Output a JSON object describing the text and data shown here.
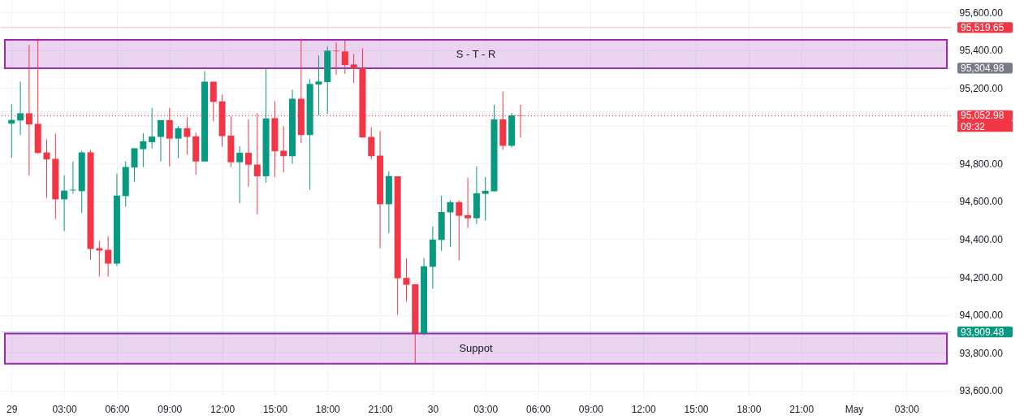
{
  "chart_data": {
    "type": "candlestick",
    "x": [
      "--04-29T00:00",
      "--04-29T00:30",
      "--04-29T01:00",
      "--04-29T01:30",
      "--04-29T02:00",
      "--04-29T02:30",
      "--04-29T03:00",
      "--04-29T03:30",
      "--04-29T04:00",
      "--04-29T04:30",
      "--04-29T05:00",
      "--04-29T05:30",
      "--04-29T06:00",
      "--04-29T06:30",
      "--04-29T07:00",
      "--04-29T07:30",
      "--04-29T08:00",
      "--04-29T08:30",
      "--04-29T09:00",
      "--04-29T09:30",
      "--04-29T10:00",
      "--04-29T10:30",
      "--04-29T11:00",
      "--04-29T11:30",
      "--04-29T12:00",
      "--04-29T12:30",
      "--04-29T13:00",
      "--04-29T13:30",
      "--04-29T14:00",
      "--04-29T14:30",
      "--04-29T15:00",
      "--04-29T15:30",
      "--04-29T16:00",
      "--04-29T16:30",
      "--04-29T17:00",
      "--04-29T17:30",
      "--04-29T18:00",
      "--04-29T18:30",
      "--04-29T19:00",
      "--04-29T19:30",
      "--04-29T20:00",
      "--04-29T20:30",
      "--04-29T21:00",
      "--04-29T21:30",
      "--04-29T22:00",
      "--04-29T22:30",
      "--04-29T23:00",
      "--04-29T23:30",
      "--04-30T00:00",
      "--04-30T00:30",
      "--04-30T01:00",
      "--04-30T01:30",
      "--04-30T02:00",
      "--04-30T02:30",
      "--04-30T03:00",
      "--04-30T03:30",
      "--04-30T04:00",
      "--04-30T04:30",
      "--04-30T05:00"
    ],
    "ohlc": [
      [
        95011,
        95113,
        94830,
        95031
      ],
      [
        95028,
        95234,
        94951,
        95066
      ],
      [
        95066,
        95427,
        94736,
        95007
      ],
      [
        95010,
        95462,
        94852,
        94856
      ],
      [
        94859,
        94928,
        94619,
        94822
      ],
      [
        94825,
        94958,
        94507,
        94611
      ],
      [
        94611,
        94738,
        94443,
        94657
      ],
      [
        94658,
        94812,
        94641,
        94662
      ],
      [
        94654,
        94868,
        94538,
        94859
      ],
      [
        94859,
        94872,
        94292,
        94348
      ],
      [
        94352,
        94391,
        94202,
        94340
      ],
      [
        94344,
        94416,
        94202,
        94271
      ],
      [
        94271,
        94747,
        94258,
        94631
      ],
      [
        94628,
        94812,
        94572,
        94782
      ],
      [
        94779,
        94881,
        94705,
        94881
      ],
      [
        94876,
        94961,
        94781,
        94918
      ],
      [
        94913,
        95095,
        94880,
        94943
      ],
      [
        94941,
        95030,
        94811,
        95030
      ],
      [
        95030,
        95095,
        94785,
        94932
      ],
      [
        94932,
        94998,
        94828,
        94987
      ],
      [
        94987,
        95043,
        94846,
        94941
      ],
      [
        94944,
        94964,
        94742,
        94811
      ],
      [
        94811,
        95289,
        94811,
        95233
      ],
      [
        95233,
        95233,
        95023,
        95126
      ],
      [
        95129,
        95164,
        94889,
        94945
      ],
      [
        94948,
        95050,
        94781,
        94807
      ],
      [
        94807,
        94892,
        94591,
        94857
      ],
      [
        94857,
        95034,
        94677,
        94794
      ],
      [
        94795,
        95067,
        94530,
        94733
      ],
      [
        94733,
        95302,
        94699,
        95039
      ],
      [
        95040,
        95130,
        94730,
        94865
      ],
      [
        94868,
        94998,
        94753,
        94839
      ],
      [
        94839,
        95190,
        94800,
        95143
      ],
      [
        95143,
        95462,
        94908,
        94951
      ],
      [
        94951,
        95246,
        94662,
        95221
      ],
      [
        95218,
        95371,
        95054,
        95234
      ],
      [
        95231,
        95419,
        95063,
        95397
      ],
      [
        95397,
        95440,
        95269,
        95394
      ],
      [
        95393,
        95453,
        95274,
        95321
      ],
      [
        95324,
        95380,
        95226,
        95300
      ],
      [
        95304,
        95410,
        94938,
        94938
      ],
      [
        94941,
        94992,
        94822,
        94839
      ],
      [
        94842,
        94971,
        94352,
        94585
      ],
      [
        94585,
        94760,
        94434,
        94734
      ],
      [
        94733,
        94733,
        94000,
        94194
      ],
      [
        94195,
        94300,
        94069,
        94159
      ],
      [
        94162,
        94162,
        93743,
        93903
      ],
      [
        93903,
        94300,
        93893,
        94257
      ],
      [
        94254,
        94467,
        94138,
        94398
      ],
      [
        94396,
        94630,
        94338,
        94544
      ],
      [
        94542,
        94605,
        94361,
        94596
      ],
      [
        94596,
        94605,
        94288,
        94524
      ],
      [
        94527,
        94725,
        94460,
        94511
      ],
      [
        94511,
        94785,
        94481,
        94643
      ],
      [
        94640,
        94729,
        94499,
        94656
      ],
      [
        94653,
        95111,
        94653,
        95034
      ],
      [
        95034,
        95180,
        94872,
        94894
      ],
      [
        94894,
        95068,
        94885,
        95055
      ],
      [
        95055,
        95111,
        94937,
        95053
      ]
    ],
    "colors": [
      "#089981",
      "#089981",
      "#f23645",
      "#f23645",
      "#f23645",
      "#f23645",
      "#089981",
      "#089981",
      "#089981",
      "#f23645",
      "#f23645",
      "#f23645",
      "#089981",
      "#089981",
      "#089981",
      "#089981",
      "#089981",
      "#089981",
      "#f23645",
      "#089981",
      "#f23645",
      "#f23645",
      "#089981",
      "#f23645",
      "#f23645",
      "#f23645",
      "#089981",
      "#f23645",
      "#f23645",
      "#089981",
      "#f23645",
      "#f23645",
      "#089981",
      "#f23645",
      "#089981",
      "#089981",
      "#089981",
      "#f23645",
      "#f23645",
      "#f23645",
      "#f23645",
      "#f23645",
      "#f23645",
      "#089981",
      "#f23645",
      "#f23645",
      "#f23645",
      "#089981",
      "#089981",
      "#089981",
      "#089981",
      "#f23645",
      "#f23645",
      "#089981",
      "#089981",
      "#089981",
      "#f23645",
      "#089981",
      "#f23645"
    ],
    "xlim": [
      "--04-28T23:37",
      "--05-01T05:18"
    ],
    "xticks": [
      {
        "value": "--04-29T00:00",
        "label": "29"
      },
      {
        "value": "--04-29T03:00",
        "label": "03:00"
      },
      {
        "value": "--04-29T06:00",
        "label": "06:00"
      },
      {
        "value": "--04-29T09:00",
        "label": "09:00"
      },
      {
        "value": "--04-29T12:00",
        "label": "12:00"
      },
      {
        "value": "--04-29T15:00",
        "label": "15:00"
      },
      {
        "value": "--04-29T18:00",
        "label": "18:00"
      },
      {
        "value": "--04-29T21:00",
        "label": "21:00"
      },
      {
        "value": "--04-30T00:00",
        "label": "30"
      },
      {
        "value": "--04-30T03:00",
        "label": "03:00"
      },
      {
        "value": "--04-30T06:00",
        "label": "06:00"
      },
      {
        "value": "--04-30T09:00",
        "label": "09:00"
      },
      {
        "value": "--04-30T12:00",
        "label": "12:00"
      },
      {
        "value": "--04-30T15:00",
        "label": "15:00"
      },
      {
        "value": "--04-30T18:00",
        "label": "18:00"
      },
      {
        "value": "--04-30T21:00",
        "label": "21:00"
      },
      {
        "value": "--05-01T00:00",
        "label": "May"
      },
      {
        "value": "--05-01T03:00",
        "label": "03:00"
      }
    ],
    "ylim": [
      93560,
      95665
    ],
    "yticks": [
      {
        "value": 93600,
        "label": "93,600.00"
      },
      {
        "value": 93800,
        "label": "93,800.00"
      },
      {
        "value": 94000,
        "label": "94,000.00"
      },
      {
        "value": 94200,
        "label": "94,200.00"
      },
      {
        "value": 94400,
        "label": "94,400.00"
      },
      {
        "value": 94600,
        "label": "94,600.00"
      },
      {
        "value": 94800,
        "label": "94,800.00"
      },
      {
        "value": 95000,
        "label": null
      },
      {
        "value": 95200,
        "label": "95,200.00"
      },
      {
        "value": 95400,
        "label": "95,400.00"
      },
      {
        "value": 95600,
        "label": "95,600.00"
      }
    ],
    "grid": true,
    "ref_lines": [
      {
        "axis": "y",
        "value": 95052.98,
        "label": "95,052.98",
        "color": "#f23645",
        "line_style": "dotted"
      },
      {
        "axis": "y",
        "value": 95519.65,
        "label": "95,519.65",
        "color": "#f23645",
        "line_style": "solid"
      },
      {
        "axis": "y",
        "value": 95304.98,
        "label": "95,304.98",
        "color": "#787b86",
        "line_style": "solid"
      },
      {
        "axis": "y",
        "value": 93909.48,
        "label": "93,909.48",
        "color": "#089981",
        "line_style": "solid"
      }
    ],
    "bands": [
      {
        "axis": "y",
        "from": 95304,
        "to": 95454,
        "label": "S - T - R",
        "color": "#9c27b0"
      },
      {
        "axis": "y",
        "from": 93742,
        "to": 93901,
        "label": "Suppot",
        "color": "#9c27b0"
      }
    ],
    "annotations": [
      "09:32"
    ]
  }
}
